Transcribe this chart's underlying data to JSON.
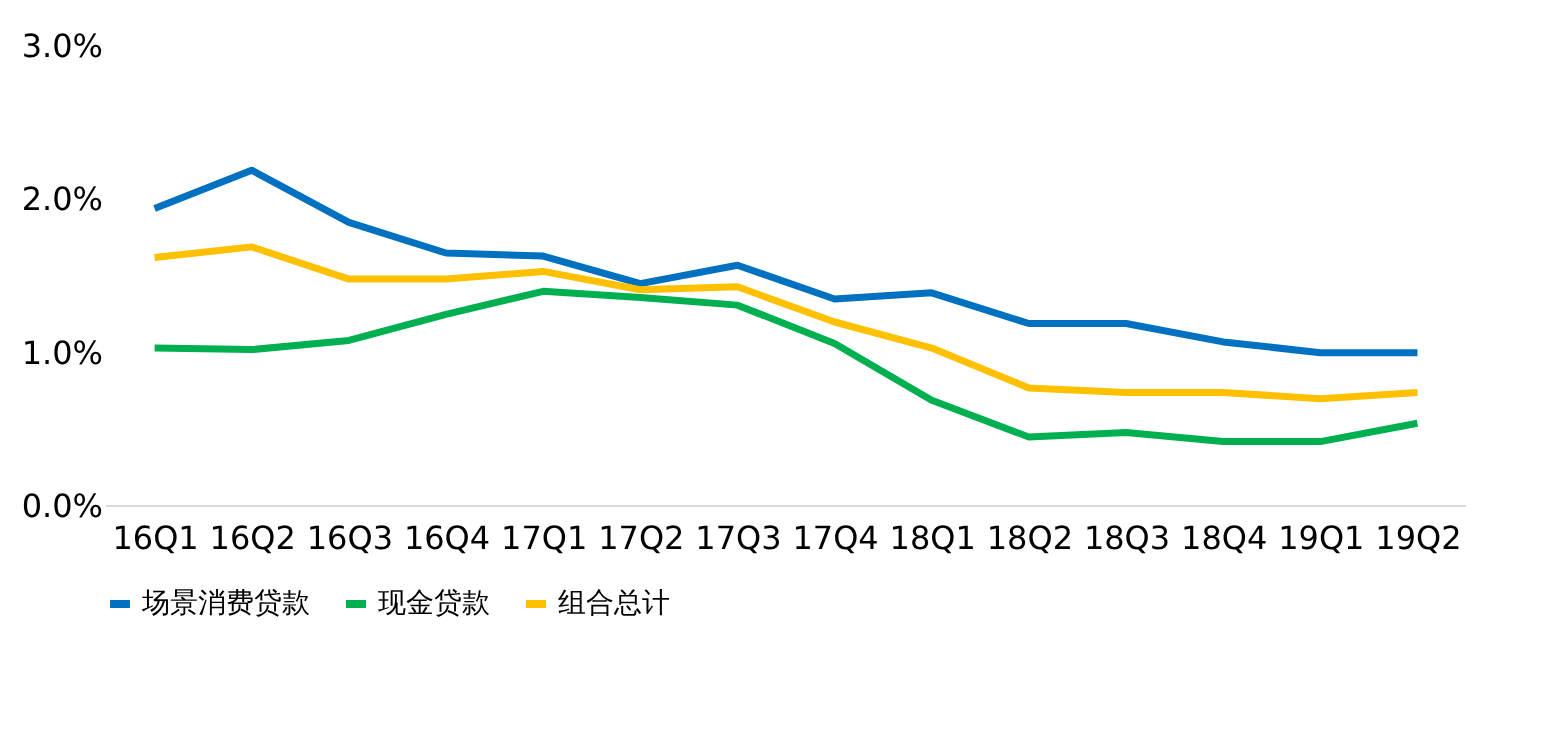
{
  "chart_data": {
    "type": "line",
    "categories": [
      "16Q1",
      "16Q2",
      "16Q3",
      "16Q4",
      "17Q1",
      "17Q2",
      "17Q3",
      "17Q4",
      "18Q1",
      "18Q2",
      "18Q3",
      "18Q4",
      "19Q1",
      "19Q2"
    ],
    "series": [
      {
        "name": "场景消费贷款",
        "color": "#0070c0",
        "values": [
          1.94,
          2.19,
          1.85,
          1.65,
          1.63,
          1.45,
          1.57,
          1.35,
          1.39,
          1.19,
          1.19,
          1.07,
          1.0,
          1.0
        ]
      },
      {
        "name": "现金贷款",
        "color": "#00b050",
        "values": [
          1.03,
          1.02,
          1.08,
          1.25,
          1.4,
          1.36,
          1.31,
          1.06,
          0.69,
          0.45,
          0.48,
          0.42,
          0.42,
          0.54
        ]
      },
      {
        "name": "组合总计",
        "color": "#ffc000",
        "values": [
          1.62,
          1.69,
          1.48,
          1.48,
          1.53,
          1.41,
          1.43,
          1.2,
          1.03,
          0.77,
          0.74,
          0.74,
          0.7,
          0.74
        ]
      }
    ],
    "ylim": [
      0,
      3
    ],
    "yticks": [
      {
        "value": 0,
        "label": "0.0%"
      },
      {
        "value": 1,
        "label": "1.0%"
      },
      {
        "value": 2,
        "label": "2.0%"
      },
      {
        "value": 3,
        "label": "3.0%"
      }
    ],
    "grid": false,
    "legend": "bottom",
    "marker": "none",
    "line_style": "solid"
  }
}
